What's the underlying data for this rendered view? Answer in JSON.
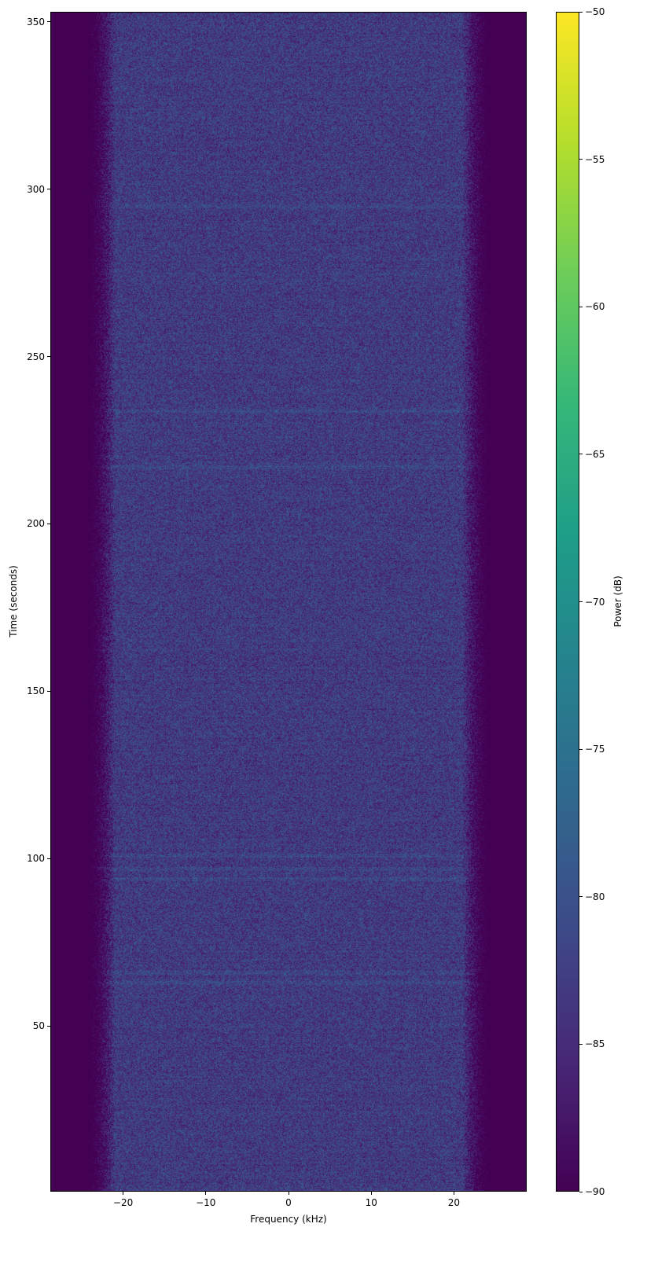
{
  "chart_data": {
    "type": "heatmap",
    "xlabel": "Frequency (kHz)",
    "ylabel": "Time (seconds)",
    "xlim": [
      -28.8,
      28.8
    ],
    "ylim": [
      0.5,
      353
    ],
    "xticks": [
      -20,
      -10,
      0,
      10,
      20
    ],
    "xtick_labels": [
      "−20",
      "−10",
      "0",
      "10",
      "20"
    ],
    "yticks": [
      50,
      100,
      150,
      200,
      250,
      300,
      350
    ],
    "ytick_labels": [
      "50",
      "100",
      "150",
      "200",
      "250",
      "300",
      "350"
    ],
    "colormap": "viridis",
    "colorbar": {
      "label": "Power (dB)",
      "clim": [
        -90,
        -50
      ],
      "ticks": [
        -90,
        -85,
        -80,
        -75,
        -70,
        -65,
        -60,
        -55,
        -50
      ],
      "tick_labels": [
        "−90",
        "−85",
        "−80",
        "−75",
        "−70",
        "−65",
        "−60",
        "−55",
        "−50"
      ]
    },
    "passband_khz": [
      -24,
      24
    ],
    "noise_floor_db": -90,
    "in_band_power_db_range": [
      -88,
      -78
    ],
    "brighter_time_bands_s": [
      63,
      66,
      94,
      97,
      101,
      217,
      234,
      295
    ]
  }
}
